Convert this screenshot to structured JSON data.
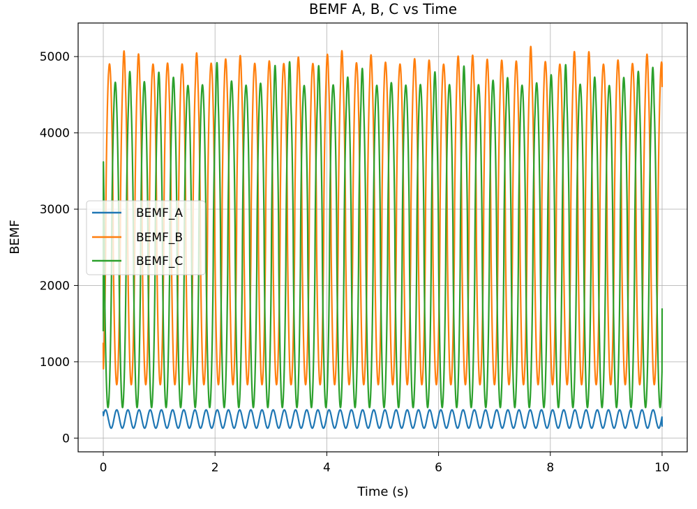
{
  "chart_data": {
    "type": "line",
    "title": "BEMF A, B, C vs Time",
    "xlabel": "Time (s)",
    "ylabel": "BEMF",
    "xlim": [
      -0.45,
      10.45
    ],
    "ylim": [
      -180,
      5440
    ],
    "xticks": [
      0,
      2,
      4,
      6,
      8,
      10
    ],
    "xtick_labels": [
      "0",
      "2",
      "4",
      "6",
      "8",
      "10"
    ],
    "yticks": [
      0,
      1000,
      2000,
      3000,
      4000,
      5000
    ],
    "ytick_labels": [
      "0",
      "1000",
      "2000",
      "3000",
      "4000",
      "5000"
    ],
    "grid": true,
    "legend_position": "center-left",
    "series": [
      {
        "name": "BEMF_A",
        "color": "#1f77b4",
        "waveform": "periodic",
        "period_s": 0.2,
        "t_start": 0,
        "t_end": 10,
        "min": 130,
        "max": 370,
        "start_value": 350,
        "end_value": 150
      },
      {
        "name": "BEMF_B",
        "color": "#ff7f0e",
        "waveform": "periodic",
        "period_s": 0.26,
        "t_start": 0,
        "t_end": 10,
        "min": 700,
        "max": 4900,
        "peak_max": 5150,
        "start_value": 1250,
        "end_value": 4600
      },
      {
        "name": "BEMF_C",
        "color": "#2ca02c",
        "waveform": "periodic",
        "period_s": 0.26,
        "t_start": 0,
        "t_end": 10,
        "min": 400,
        "max": 4620,
        "peak_max": 4950,
        "start_value": 1400,
        "end_value": 1700
      }
    ]
  }
}
